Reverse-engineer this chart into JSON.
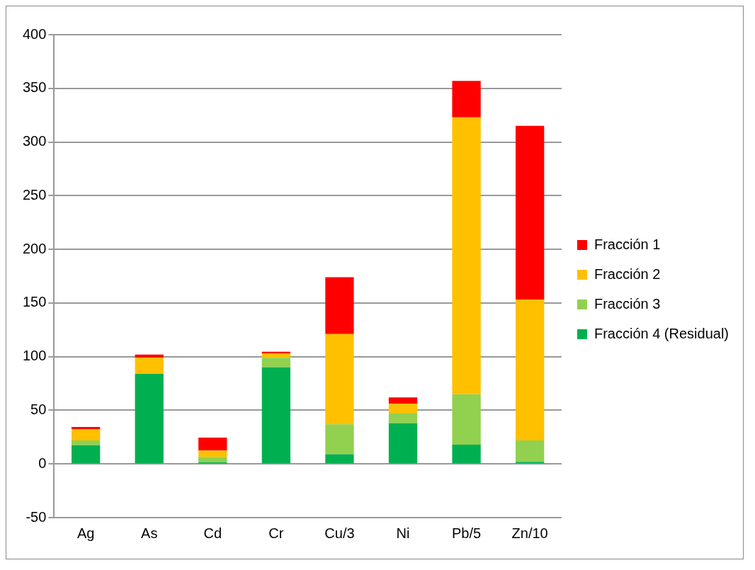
{
  "chart_data": {
    "type": "bar",
    "stacked": true,
    "categories": [
      "Ag",
      "As",
      "Cd",
      "Cr",
      "Cu/3",
      "Ni",
      "Pb/5",
      "Zn/10"
    ],
    "series": [
      {
        "name": "Fracción 4 (Residual)",
        "color": "#00b050",
        "values": [
          17.5,
          84,
          1.5,
          90,
          9,
          38,
          18,
          2
        ]
      },
      {
        "name": "Fracción 3",
        "color": "#92d050",
        "values": [
          4.5,
          0,
          5,
          9,
          28,
          9,
          47,
          20
        ]
      },
      {
        "name": "Fracción 2",
        "color": "#ffc000",
        "values": [
          10.5,
          15,
          6,
          4,
          84,
          9,
          258,
          131
        ]
      },
      {
        "name": "Fracción 1",
        "color": "#ff0000",
        "values": [
          2,
          3,
          12,
          1.5,
          53,
          6,
          34,
          162
        ]
      }
    ],
    "ylim": [
      -50,
      400
    ],
    "yticks": [
      -50,
      0,
      50,
      100,
      150,
      200,
      250,
      300,
      350,
      400
    ],
    "grid": "y",
    "legend": "right"
  }
}
